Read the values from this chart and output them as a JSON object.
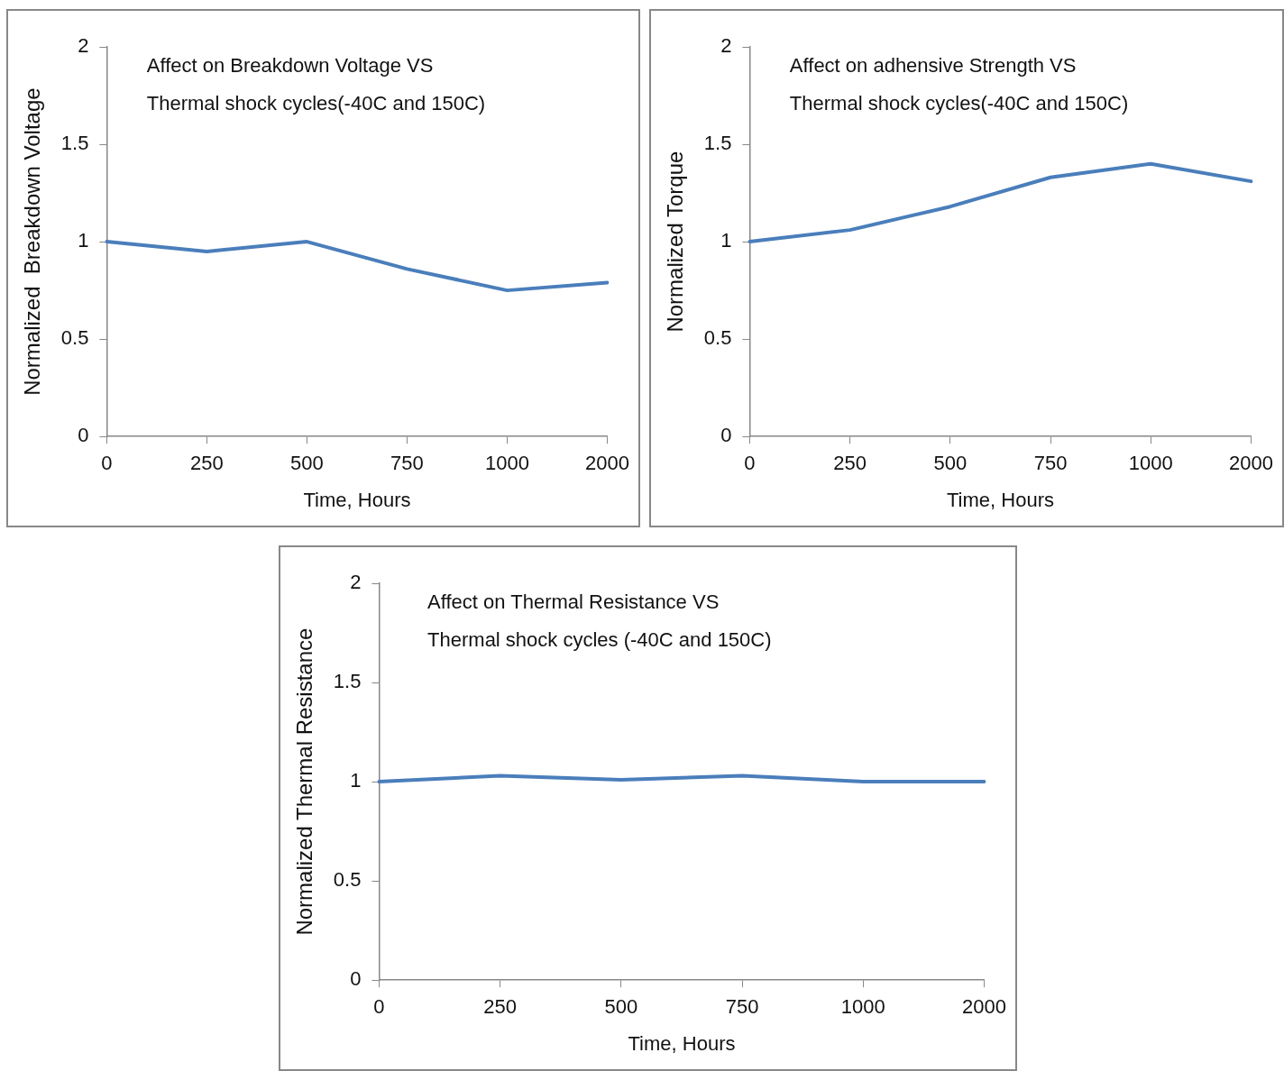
{
  "chart_data": [
    {
      "type": "line",
      "title": "Affect on Breakdown Voltage VS\nThermal shock cycles(-40C and 150C)",
      "xlabel": "Time, Hours",
      "ylabel": "Normalized  Breakdown Voltage",
      "categories": [
        "0",
        "250",
        "500",
        "750",
        "1000",
        "2000"
      ],
      "values": [
        1.0,
        0.95,
        1.0,
        0.86,
        0.75,
        0.79
      ],
      "color": "#4a7ebb",
      "ylim": [
        0,
        2
      ],
      "yticks": [
        0,
        0.5,
        1,
        1.5,
        2
      ],
      "grid": false,
      "legend": false,
      "marker": "none"
    },
    {
      "type": "line",
      "title": "Affect on adhensive Strength VS\nThermal shock cycles(-40C and 150C)",
      "xlabel": "Time, Hours",
      "ylabel": "Normalized Torque",
      "categories": [
        "0",
        "250",
        "500",
        "750",
        "1000",
        "2000"
      ],
      "values": [
        1.0,
        1.06,
        1.18,
        1.33,
        1.4,
        1.31
      ],
      "color": "#4a7ebb",
      "ylim": [
        0,
        2
      ],
      "yticks": [
        0,
        0.5,
        1,
        1.5,
        2
      ],
      "grid": false,
      "legend": false,
      "marker": "none"
    },
    {
      "type": "line",
      "title": "Affect on Thermal Resistance VS\nThermal shock cycles (-40C and 150C)",
      "xlabel": "Time, Hours",
      "ylabel": "Normalized Thermal Resistance",
      "categories": [
        "0",
        "250",
        "500",
        "750",
        "1000",
        "2000"
      ],
      "values": [
        1.0,
        1.03,
        1.01,
        1.03,
        1.0,
        1.0
      ],
      "color": "#4a7ebb",
      "ylim": [
        0,
        2
      ],
      "yticks": [
        0,
        0.5,
        1,
        1.5,
        2
      ],
      "grid": false,
      "legend": false,
      "marker": "none"
    }
  ]
}
